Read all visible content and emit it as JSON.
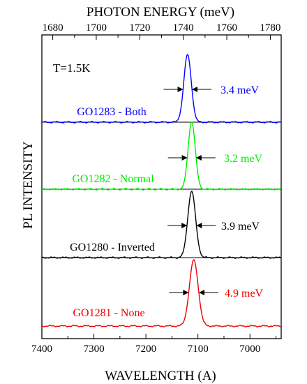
{
  "chart_data": {
    "type": "line",
    "title": "",
    "xlabel": "WAVELENGTH (A)",
    "ylabel": "PL INTENSITY",
    "top_axis_label": "PHOTON ENERGY (meV)",
    "xlim": [
      7400,
      6940
    ],
    "x_ticks": [
      "7400",
      "7300",
      "7200",
      "7100",
      "7000"
    ],
    "top_xlim": [
      1675,
      1785
    ],
    "top_ticks": [
      "1680",
      "1700",
      "1720",
      "1740",
      "1760",
      "1780"
    ],
    "annotation": "T=1.5K",
    "grid": false,
    "series": [
      {
        "name": "GO1283 - Both",
        "color": "#0000ff",
        "peak_wavelength": 7120,
        "fwhm_label": "3.4 meV",
        "fwhm_wavelength": 1.67
      },
      {
        "name": "GO1282 - Normal",
        "color": "#00ee00",
        "peak_wavelength": 7112,
        "fwhm_label": "3.2 meV",
        "fwhm_wavelength": 1.56
      },
      {
        "name": "GO1280 - Inverted",
        "color": "#000000",
        "peak_wavelength": 7112,
        "fwhm_label": "3.9 meV",
        "fwhm_wavelength": 1.9
      },
      {
        "name": "GO1281 - None",
        "color": "#ee0000",
        "peak_wavelength": 7108,
        "fwhm_label": "4.9 meV",
        "fwhm_wavelength": 2.39
      }
    ]
  }
}
